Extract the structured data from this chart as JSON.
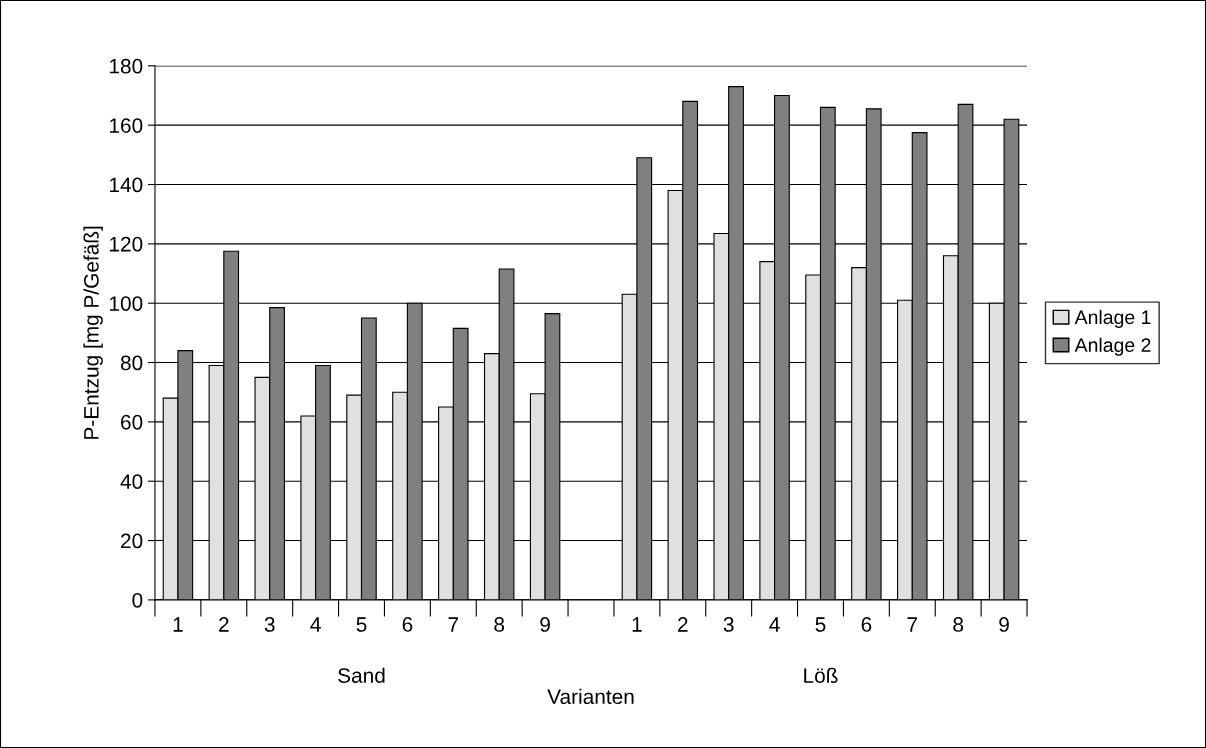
{
  "chart_data": {
    "type": "bar",
    "xlabel": "Varianten",
    "ylabel": "P-Entzug [mg P/Gefäß]",
    "categories": [
      "1",
      "2",
      "3",
      "4",
      "5",
      "6",
      "7",
      "8",
      "9",
      null,
      "1",
      "2",
      "3",
      "4",
      "5",
      "6",
      "7",
      "8",
      "9"
    ],
    "series": [
      {
        "name": "Anlage 1",
        "color": "#e0e0e0",
        "values": [
          68,
          79,
          75,
          62,
          69,
          70,
          65,
          83,
          69.5,
          null,
          103,
          138,
          123.5,
          114,
          109.5,
          112,
          101,
          116,
          100
        ]
      },
      {
        "name": "Anlage 2",
        "color": "#808080",
        "values": [
          84,
          117.5,
          98.5,
          79,
          95,
          100,
          91.5,
          111.5,
          96.5,
          null,
          149,
          168,
          173,
          170,
          166,
          165.5,
          157.5,
          167,
          162
        ]
      }
    ],
    "annotations": [
      "Sand",
      "Löß"
    ],
    "ylim": [
      0,
      180
    ],
    "yticks": [
      0,
      20,
      40,
      60,
      80,
      100,
      120,
      140,
      160,
      180
    ],
    "grid": "y",
    "legend": "right"
  }
}
